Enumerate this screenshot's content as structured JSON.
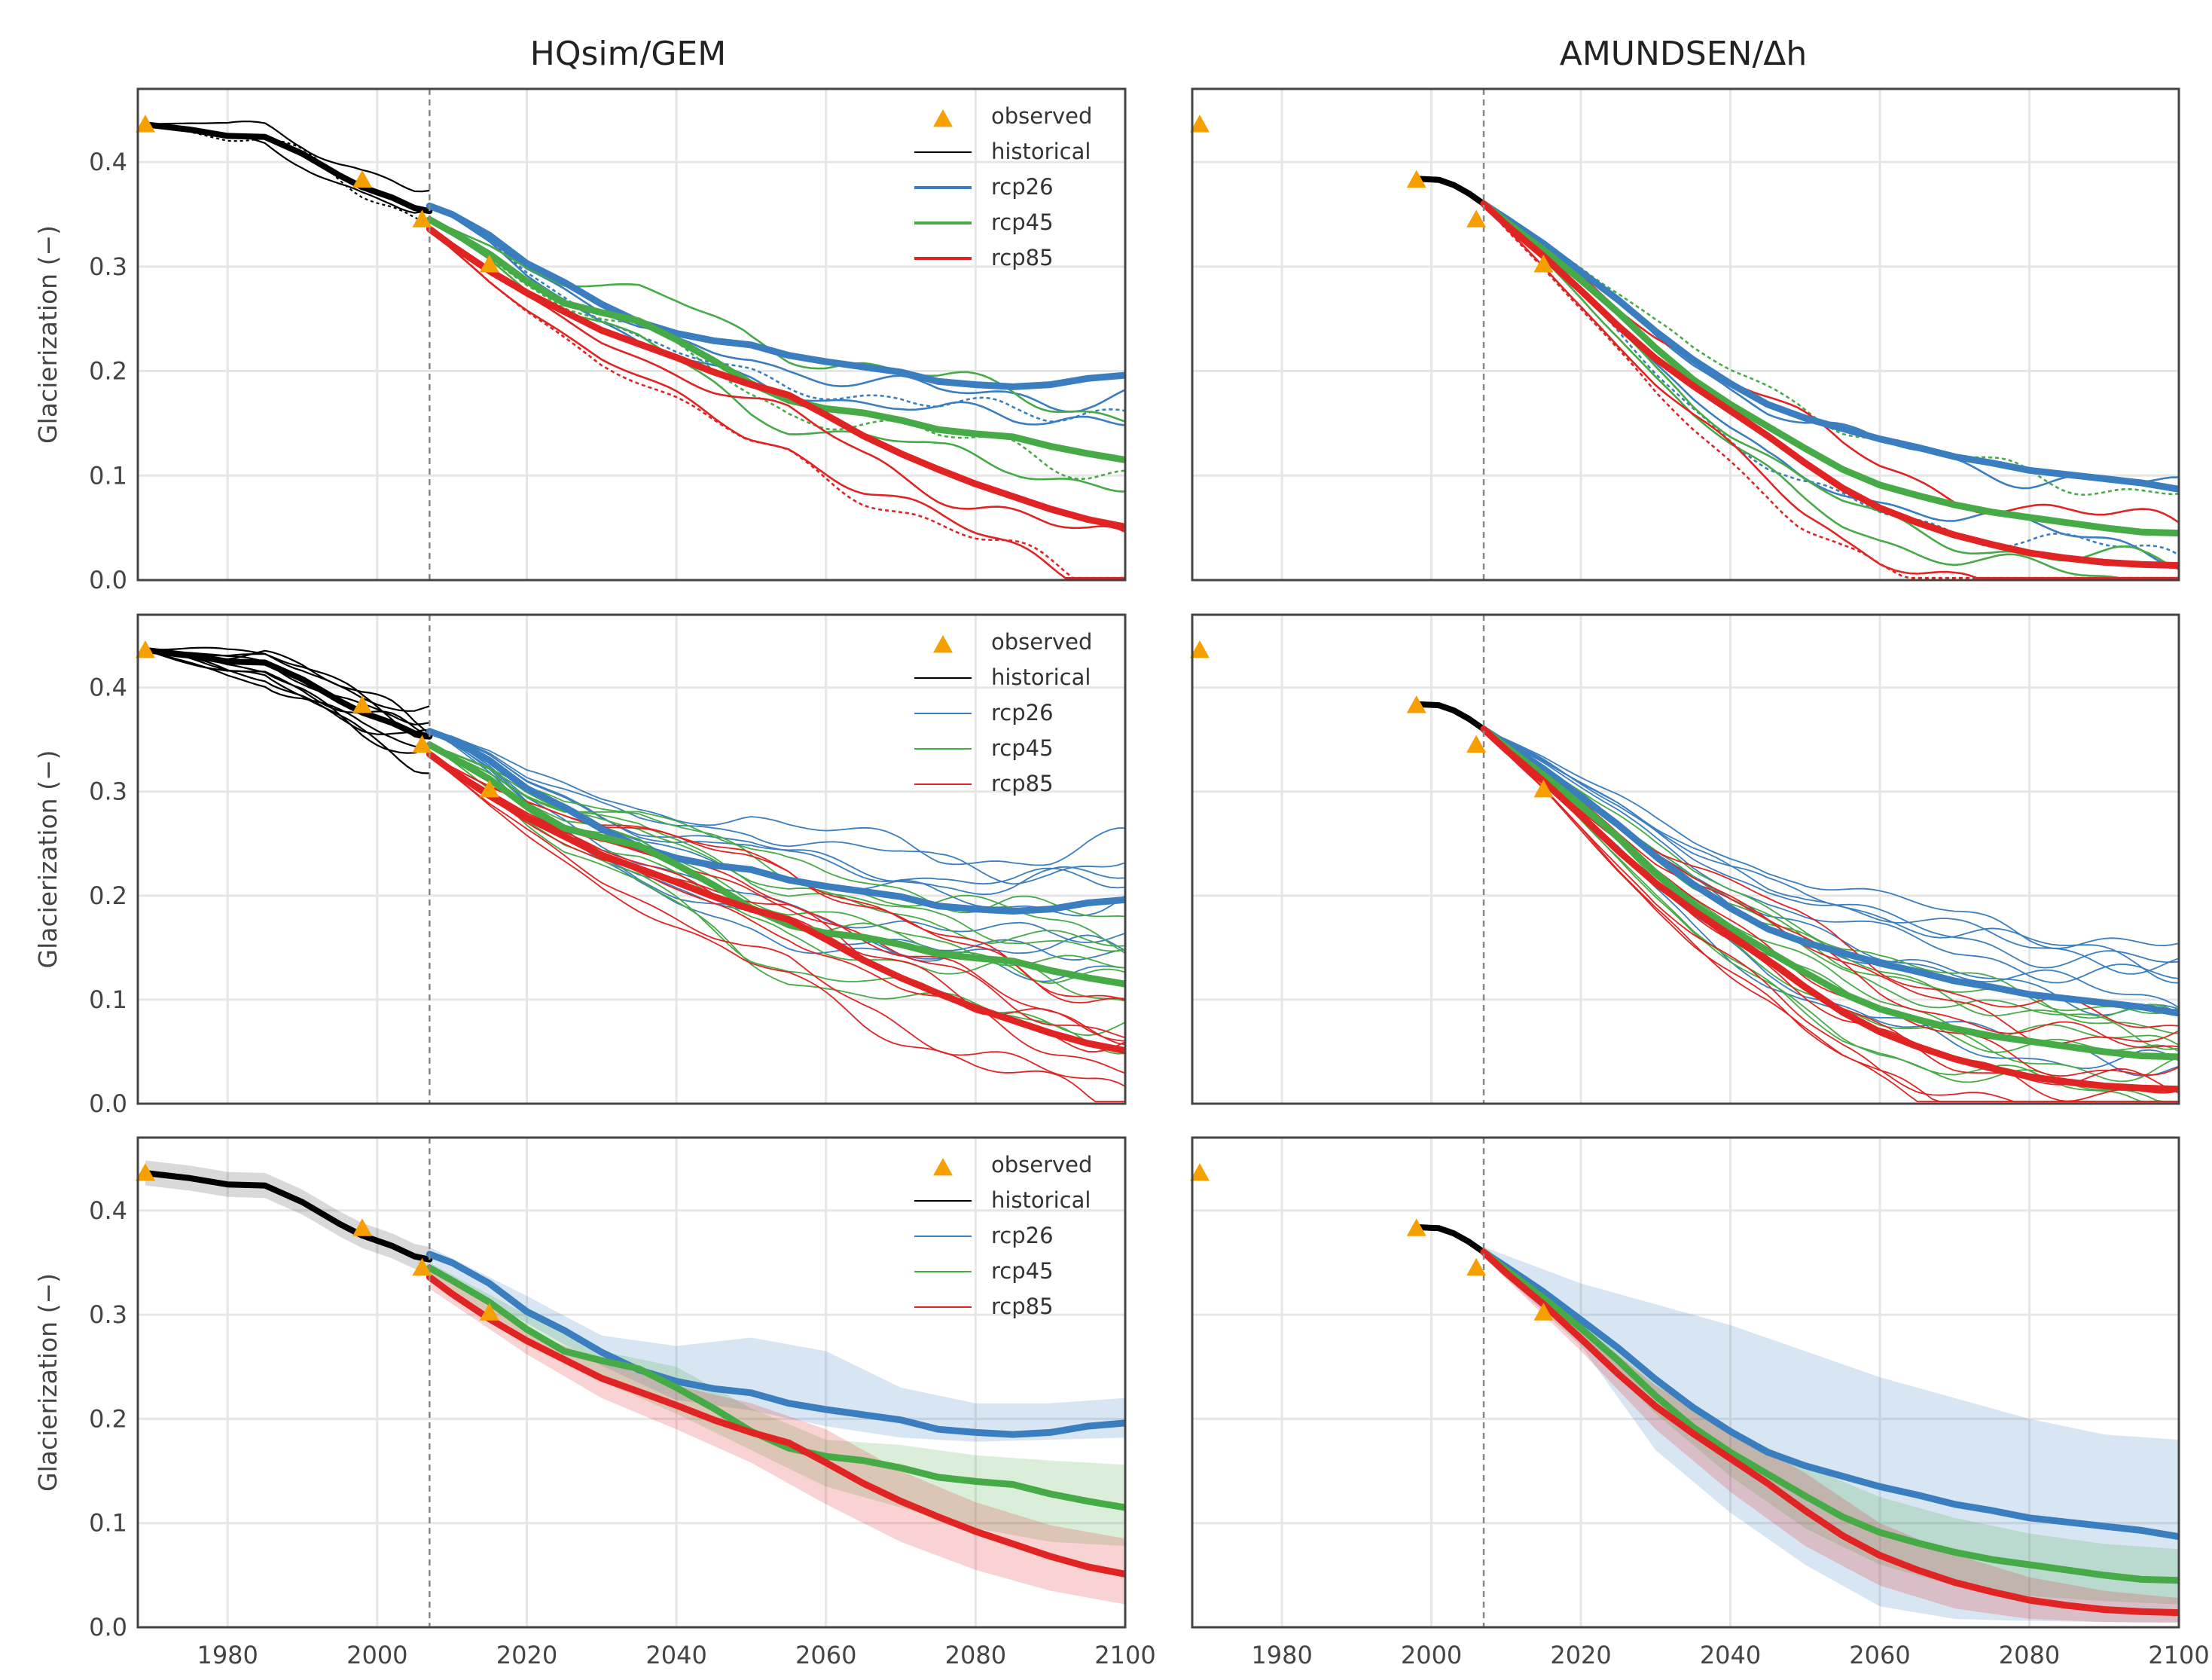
{
  "figure": {
    "columns": [
      "HQsim/GEM",
      "AMUNDSEN/Δh"
    ],
    "ylabel": "Glacierization (−)"
  },
  "chart_data": {
    "type": "line",
    "grid": true,
    "xlim": [
      1968,
      2100
    ],
    "ylim": [
      0,
      0.47
    ],
    "xticks": [
      1980,
      2000,
      2020,
      2040,
      2060,
      2080,
      2100
    ],
    "yticks": [
      0.0,
      0.1,
      0.2,
      0.3,
      0.4
    ],
    "xtick_labels": [
      "1980",
      "2000",
      "2020",
      "2040",
      "2060",
      "2080",
      "2100"
    ],
    "ytick_labels": [
      "0.0",
      "0.1",
      "0.2",
      "0.3",
      "0.4"
    ],
    "reference_year": 2007,
    "colors": {
      "observed": "#f5a000",
      "historical": "#000000",
      "rcp26": "#3a7ebf",
      "rcp45": "#46ab46",
      "rcp85": "#e02424"
    },
    "legend": {
      "placement": "top-right",
      "entries": [
        "observed",
        "historical",
        "rcp26",
        "rcp45",
        "rcp85"
      ]
    },
    "observed": {
      "years": [
        1969,
        1998,
        2006,
        2015
      ],
      "values": [
        0.436,
        0.383,
        0.345,
        0.302
      ]
    },
    "hqsim_historical": {
      "years": [
        1969,
        1975,
        1980,
        1985,
        1990,
        1995,
        1998,
        2002,
        2005,
        2007
      ],
      "values": [
        0.436,
        0.431,
        0.425,
        0.424,
        0.408,
        0.387,
        0.376,
        0.366,
        0.356,
        0.353
      ]
    },
    "amundsen_historical": {
      "years": [
        1998,
        2001,
        2003,
        2005,
        2007
      ],
      "values": [
        0.384,
        0.383,
        0.378,
        0.37,
        0.36
      ]
    },
    "series": [
      {
        "name": "rcp26",
        "model": "HQsim/GEM",
        "years": [
          2007,
          2010,
          2015,
          2020,
          2025,
          2030,
          2035,
          2040,
          2045,
          2050,
          2055,
          2060,
          2065,
          2070,
          2075,
          2080,
          2085,
          2090,
          2095,
          2100
        ],
        "values": [
          0.358,
          0.35,
          0.33,
          0.303,
          0.285,
          0.264,
          0.247,
          0.236,
          0.229,
          0.225,
          0.215,
          0.209,
          0.204,
          0.199,
          0.19,
          0.187,
          0.185,
          0.187,
          0.193,
          0.196
        ]
      },
      {
        "name": "rcp45",
        "model": "HQsim/GEM",
        "years": [
          2007,
          2010,
          2015,
          2020,
          2025,
          2030,
          2035,
          2040,
          2045,
          2050,
          2055,
          2060,
          2065,
          2070,
          2075,
          2080,
          2085,
          2090,
          2095,
          2100
        ],
        "values": [
          0.345,
          0.333,
          0.312,
          0.286,
          0.265,
          0.256,
          0.248,
          0.23,
          0.21,
          0.188,
          0.172,
          0.164,
          0.16,
          0.153,
          0.144,
          0.14,
          0.137,
          0.128,
          0.121,
          0.115
        ]
      },
      {
        "name": "rcp85",
        "model": "HQsim/GEM",
        "years": [
          2007,
          2010,
          2015,
          2020,
          2025,
          2030,
          2035,
          2040,
          2045,
          2050,
          2055,
          2060,
          2065,
          2070,
          2075,
          2080,
          2085,
          2090,
          2095,
          2100
        ],
        "values": [
          0.336,
          0.32,
          0.296,
          0.275,
          0.257,
          0.239,
          0.226,
          0.213,
          0.199,
          0.187,
          0.177,
          0.158,
          0.138,
          0.121,
          0.106,
          0.092,
          0.08,
          0.068,
          0.058,
          0.051
        ]
      },
      {
        "name": "rcp26",
        "model": "AMUNDSEN/Δh",
        "years": [
          2007,
          2010,
          2015,
          2020,
          2025,
          2030,
          2035,
          2040,
          2045,
          2050,
          2055,
          2060,
          2065,
          2070,
          2075,
          2080,
          2085,
          2090,
          2095,
          2100
        ],
        "values": [
          0.36,
          0.346,
          0.322,
          0.295,
          0.268,
          0.238,
          0.211,
          0.188,
          0.168,
          0.155,
          0.145,
          0.135,
          0.127,
          0.118,
          0.112,
          0.105,
          0.101,
          0.097,
          0.093,
          0.087
        ]
      },
      {
        "name": "rcp45",
        "model": "AMUNDSEN/Δh",
        "years": [
          2007,
          2010,
          2015,
          2020,
          2025,
          2030,
          2035,
          2040,
          2045,
          2050,
          2055,
          2060,
          2065,
          2070,
          2075,
          2080,
          2085,
          2090,
          2095,
          2100
        ],
        "values": [
          0.36,
          0.343,
          0.316,
          0.287,
          0.256,
          0.222,
          0.192,
          0.168,
          0.147,
          0.126,
          0.106,
          0.091,
          0.081,
          0.072,
          0.065,
          0.06,
          0.055,
          0.05,
          0.046,
          0.045
        ]
      },
      {
        "name": "rcp85",
        "model": "AMUNDSEN/Δh",
        "years": [
          2007,
          2010,
          2015,
          2020,
          2025,
          2030,
          2035,
          2040,
          2045,
          2050,
          2055,
          2060,
          2065,
          2070,
          2075,
          2080,
          2085,
          2090,
          2095,
          2100
        ],
        "values": [
          0.36,
          0.34,
          0.31,
          0.277,
          0.243,
          0.212,
          0.186,
          0.162,
          0.138,
          0.112,
          0.088,
          0.069,
          0.055,
          0.043,
          0.034,
          0.026,
          0.021,
          0.017,
          0.015,
          0.014
        ]
      }
    ],
    "bands": [
      {
        "name": "rcp26",
        "model": "HQsim/GEM",
        "years": [
          2007,
          2020,
          2030,
          2040,
          2050,
          2060,
          2070,
          2080,
          2090,
          2100
        ],
        "lower": [
          0.345,
          0.292,
          0.251,
          0.218,
          0.208,
          0.193,
          0.182,
          0.178,
          0.18,
          0.182
        ],
        "upper": [
          0.365,
          0.318,
          0.28,
          0.27,
          0.278,
          0.265,
          0.23,
          0.215,
          0.215,
          0.22
        ]
      },
      {
        "name": "rcp45",
        "model": "HQsim/GEM",
        "years": [
          2007,
          2020,
          2030,
          2040,
          2050,
          2060,
          2070,
          2080,
          2090,
          2100
        ],
        "lower": [
          0.335,
          0.275,
          0.236,
          0.205,
          0.17,
          0.135,
          0.115,
          0.095,
          0.082,
          0.078
        ],
        "upper": [
          0.35,
          0.3,
          0.265,
          0.25,
          0.21,
          0.18,
          0.175,
          0.165,
          0.16,
          0.156
        ]
      },
      {
        "name": "rcp85",
        "model": "HQsim/GEM",
        "years": [
          2007,
          2020,
          2030,
          2040,
          2050,
          2060,
          2070,
          2080,
          2090,
          2100
        ],
        "lower": [
          0.325,
          0.262,
          0.22,
          0.19,
          0.158,
          0.118,
          0.082,
          0.055,
          0.035,
          0.022
        ],
        "upper": [
          0.345,
          0.285,
          0.255,
          0.232,
          0.215,
          0.19,
          0.15,
          0.12,
          0.098,
          0.085
        ]
      },
      {
        "name": "rcp26",
        "model": "AMUNDSEN/Δh",
        "years": [
          2007,
          2020,
          2030,
          2040,
          2050,
          2060,
          2070,
          2080,
          2090,
          2100
        ],
        "lower": [
          0.355,
          0.27,
          0.17,
          0.11,
          0.06,
          0.02,
          0.008,
          0.006,
          0.005,
          0.005
        ],
        "upper": [
          0.365,
          0.33,
          0.31,
          0.29,
          0.265,
          0.24,
          0.22,
          0.2,
          0.185,
          0.18
        ]
      },
      {
        "name": "rcp45",
        "model": "AMUNDSEN/Δh",
        "years": [
          2007,
          2020,
          2030,
          2040,
          2050,
          2060,
          2070,
          2080,
          2090,
          2100
        ],
        "lower": [
          0.355,
          0.275,
          0.205,
          0.145,
          0.095,
          0.06,
          0.04,
          0.03,
          0.025,
          0.022
        ],
        "upper": [
          0.365,
          0.298,
          0.24,
          0.19,
          0.155,
          0.125,
          0.105,
          0.09,
          0.08,
          0.075
        ]
      },
      {
        "name": "rcp85",
        "model": "AMUNDSEN/Δh",
        "years": [
          2007,
          2020,
          2030,
          2040,
          2050,
          2060,
          2070,
          2080,
          2090,
          2100
        ],
        "lower": [
          0.355,
          0.265,
          0.19,
          0.13,
          0.078,
          0.04,
          0.018,
          0.008,
          0.005,
          0.004
        ],
        "upper": [
          0.365,
          0.29,
          0.232,
          0.19,
          0.148,
          0.1,
          0.07,
          0.048,
          0.035,
          0.028
        ]
      }
    ],
    "row_styles": [
      "thin ensemble members with dotted variants",
      "full ensemble of thin members",
      "ensemble mean with shaded spread band"
    ]
  }
}
